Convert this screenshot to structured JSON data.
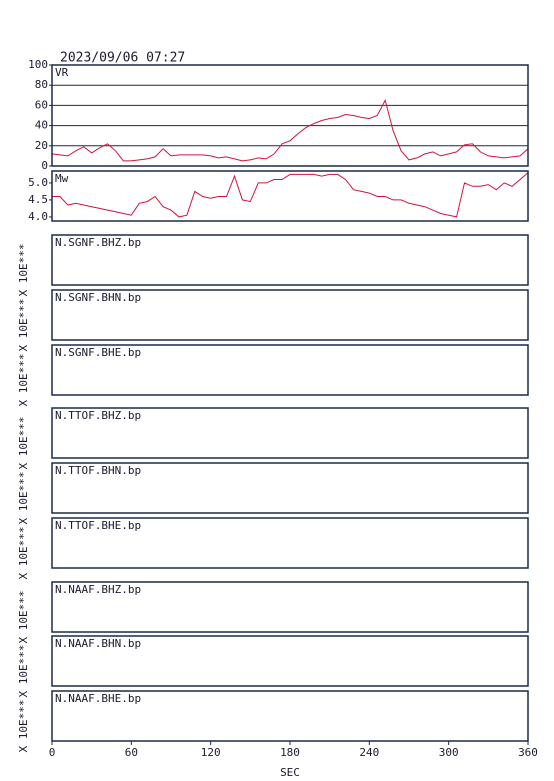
{
  "title": "2023/09/06 07:27",
  "x_axis": {
    "label": "SEC",
    "xlim": [
      0,
      360
    ],
    "xticks": [
      0,
      60,
      120,
      180,
      240,
      300,
      360
    ]
  },
  "chart_data": [
    {
      "type": "line",
      "series": [
        {
          "name": "VR",
          "color": "#d0143c",
          "values": [
            12,
            11,
            10,
            15,
            19,
            13,
            18,
            22,
            15,
            5,
            5,
            6,
            7,
            9,
            17,
            10,
            11,
            11,
            11,
            11,
            10,
            8,
            9,
            7,
            5,
            6,
            8,
            7,
            12,
            22,
            25,
            32,
            38,
            42,
            45,
            47,
            48,
            51,
            50,
            48,
            47,
            50,
            65,
            35,
            15,
            6,
            8,
            12,
            14,
            10,
            12,
            14,
            21,
            22,
            14,
            10,
            9,
            8,
            9,
            10,
            17
          ]
        }
      ],
      "x": [
        0,
        6,
        12,
        18,
        24,
        30,
        36,
        42,
        48,
        54,
        60,
        66,
        72,
        78,
        84,
        90,
        96,
        102,
        108,
        114,
        120,
        126,
        132,
        138,
        144,
        150,
        156,
        162,
        168,
        174,
        180,
        186,
        192,
        198,
        204,
        210,
        216,
        222,
        228,
        234,
        240,
        246,
        252,
        258,
        264,
        270,
        276,
        282,
        288,
        294,
        300,
        306,
        312,
        318,
        324,
        330,
        336,
        342,
        348,
        354,
        360
      ],
      "ylim": [
        0,
        100
      ],
      "yticks": [
        0,
        20,
        40,
        60,
        80,
        100
      ],
      "grid": true
    },
    {
      "type": "line",
      "series": [
        {
          "name": "Mw",
          "color": "#d0143c",
          "values": [
            4.6,
            4.6,
            4.35,
            4.4,
            4.35,
            4.3,
            4.25,
            4.2,
            4.15,
            4.1,
            4.05,
            4.4,
            4.45,
            4.6,
            4.3,
            4.2,
            4.0,
            4.05,
            4.75,
            4.6,
            4.55,
            4.6,
            4.6,
            5.2,
            4.5,
            4.45,
            5.0,
            5.0,
            5.1,
            5.1,
            5.25,
            5.25,
            5.25,
            5.25,
            5.2,
            5.25,
            5.25,
            5.1,
            4.8,
            4.75,
            4.7,
            4.6,
            4.6,
            4.5,
            4.5,
            4.4,
            4.35,
            4.3,
            4.2,
            4.1,
            4.05,
            4.0,
            5.0,
            4.9,
            4.9,
            4.95,
            4.8,
            5.0,
            4.9,
            5.1,
            5.3
          ]
        }
      ],
      "x": [
        0,
        6,
        12,
        18,
        24,
        30,
        36,
        42,
        48,
        54,
        60,
        66,
        72,
        78,
        84,
        90,
        96,
        102,
        108,
        114,
        120,
        126,
        132,
        138,
        144,
        150,
        156,
        162,
        168,
        174,
        180,
        186,
        192,
        198,
        204,
        210,
        216,
        222,
        228,
        234,
        240,
        246,
        252,
        258,
        264,
        270,
        276,
        282,
        288,
        294,
        300,
        306,
        312,
        318,
        324,
        330,
        336,
        342,
        348,
        354,
        360
      ],
      "ylim": [
        3.88,
        5.35
      ],
      "yticks": [
        {
          "value": 4.0,
          "label": "4.0"
        },
        4.5,
        {
          "value": 5.0,
          "label": "5.0"
        }
      ],
      "grid": false
    }
  ],
  "traces": [
    {
      "label": "N.SGNF.BHZ.bp",
      "unit": "X 10E***"
    },
    {
      "label": "N.SGNF.BHN.bp",
      "unit": "X 10E***"
    },
    {
      "label": "N.SGNF.BHE.bp",
      "unit": "X 10E***"
    },
    {
      "label": "N.TTOF.BHZ.bp",
      "unit": "X 10E***"
    },
    {
      "label": "N.TTOF.BHN.bp",
      "unit": "X 10E***"
    },
    {
      "label": "N.TTOF.BHE.bp",
      "unit": "X 10E***"
    },
    {
      "label": "N.NAAF.BHZ.bp",
      "unit": "X 10E***"
    },
    {
      "label": "N.NAAF.BHN.bp",
      "unit": "X 10E***"
    },
    {
      "label": "N.NAAF.BHE.bp",
      "unit": "X 10E***"
    }
  ]
}
